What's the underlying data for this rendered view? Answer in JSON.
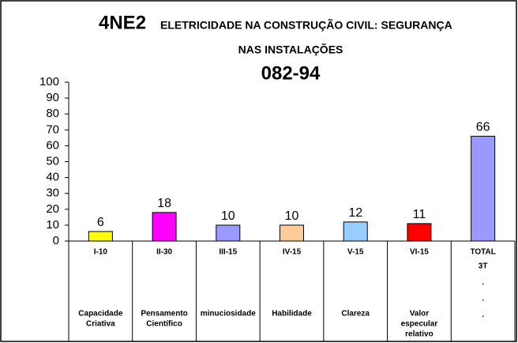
{
  "chart_data": {
    "type": "bar",
    "title_code": "4NE2",
    "title": "ELETRICIDADE NA CONSTRUÇÃO CIVIL: SEGURANÇA",
    "title_line2": "NAS INSTALAÇÕES",
    "subtitle": "082-94",
    "categories": [
      "I-10",
      "II-30",
      "III-15",
      "IV-15",
      "V-15",
      "VI-15",
      "TOTAL"
    ],
    "descriptions": [
      [
        "Capacidade",
        "Criativa"
      ],
      [
        "Pensamento",
        "Científico"
      ],
      [
        "minuciosidade"
      ],
      [
        "Habilidade"
      ],
      [
        "Clareza"
      ],
      [
        "Valor",
        "especular",
        "relativo"
      ],
      [
        "3T",
        ".",
        ".",
        "."
      ]
    ],
    "values": [
      6,
      18,
      10,
      10,
      12,
      11,
      66
    ],
    "colors": [
      "#ffff00",
      "#ff00ff",
      "#9999ff",
      "#ffcc99",
      "#99ccff",
      "#ff0000",
      "#9999ff"
    ],
    "ylim": [
      0,
      100
    ],
    "yticks": [
      0,
      10,
      20,
      30,
      40,
      50,
      60,
      70,
      80,
      90,
      100
    ],
    "grid": false
  }
}
